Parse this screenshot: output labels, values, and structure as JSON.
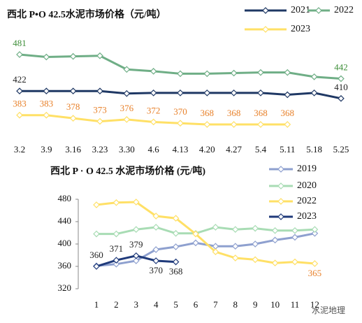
{
  "chart_data": [
    {
      "type": "line",
      "title": "西北  P•O 42.5水泥市场价格（元/吨）",
      "categories": [
        "3.2",
        "3.9",
        "3.16",
        "3.23",
        "3.30",
        "4.6",
        "4.13",
        "4.20",
        "4.27",
        "5.4",
        "5.11",
        "5.18",
        "5.25"
      ],
      "series": [
        {
          "name": "2021",
          "color": "#1f3864",
          "label_color": "#222222",
          "values": [
            422,
            422,
            422,
            422,
            418,
            419,
            419,
            419,
            419,
            419,
            416,
            419,
            410
          ],
          "value_labels": [
            "422",
            null,
            null,
            null,
            null,
            null,
            null,
            null,
            null,
            null,
            null,
            null,
            "410"
          ]
        },
        {
          "name": "2022",
          "color": "#6fae86",
          "label_color": "#3f8f3a",
          "values": [
            481,
            477,
            478,
            479,
            457,
            454,
            450,
            450,
            451,
            452,
            452,
            445,
            442
          ],
          "value_labels": [
            "481",
            null,
            null,
            null,
            null,
            null,
            null,
            null,
            null,
            null,
            null,
            null,
            "442"
          ]
        },
        {
          "name": "2023",
          "color": "#ffe066",
          "label_color": "#e8812a",
          "values": [
            383,
            383,
            378,
            373,
            376,
            372,
            370,
            368,
            368,
            368,
            368,
            null,
            null
          ],
          "value_labels": [
            "383",
            "383",
            "378",
            "373",
            "376",
            "372",
            "370",
            "368",
            "368",
            "368",
            "368",
            null,
            null
          ]
        }
      ],
      "grid": false
    },
    {
      "type": "line",
      "title": "西北 P · O 42.5 水泥市场价格 (元/吨)",
      "categories": [
        "1",
        "2",
        "3",
        "4",
        "5",
        "6",
        "7",
        "8",
        "9",
        "10",
        "11",
        "12"
      ],
      "ylim": [
        320,
        480
      ],
      "yticks": [
        320,
        360,
        400,
        440,
        480
      ],
      "series": [
        {
          "name": "2019",
          "color": "#8ea0cf",
          "label_color": "#222222",
          "values": [
            361,
            364,
            370,
            390,
            395,
            402,
            396,
            396,
            400,
            407,
            412,
            419
          ],
          "value_labels": [
            null,
            null,
            null,
            null,
            null,
            null,
            null,
            null,
            null,
            null,
            null,
            null
          ]
        },
        {
          "name": "2020",
          "color": "#a8dcb4",
          "label_color": "#222222",
          "values": [
            418,
            418,
            426,
            430,
            419,
            419,
            430,
            426,
            428,
            424,
            424,
            426
          ],
          "value_labels": [
            null,
            null,
            null,
            null,
            null,
            null,
            null,
            null,
            null,
            null,
            null,
            null
          ]
        },
        {
          "name": "2022",
          "color": "#ffe066",
          "label_color": "#e8812a",
          "values": [
            470,
            474,
            475,
            450,
            446,
            418,
            386,
            375,
            372,
            366,
            368,
            365
          ],
          "value_labels": [
            null,
            null,
            null,
            null,
            null,
            null,
            null,
            null,
            null,
            null,
            null,
            "365"
          ]
        },
        {
          "name": "2023",
          "color": "#1f3a7a",
          "label_color": "#222222",
          "values": [
            360,
            371,
            379,
            370,
            368,
            null,
            null,
            null,
            null,
            null,
            null,
            null
          ],
          "value_labels": [
            "360",
            "371",
            "379",
            "370",
            "368",
            null,
            null,
            null,
            null,
            null,
            null,
            null
          ]
        }
      ],
      "grid": false,
      "watermark": "水泥地理"
    }
  ]
}
